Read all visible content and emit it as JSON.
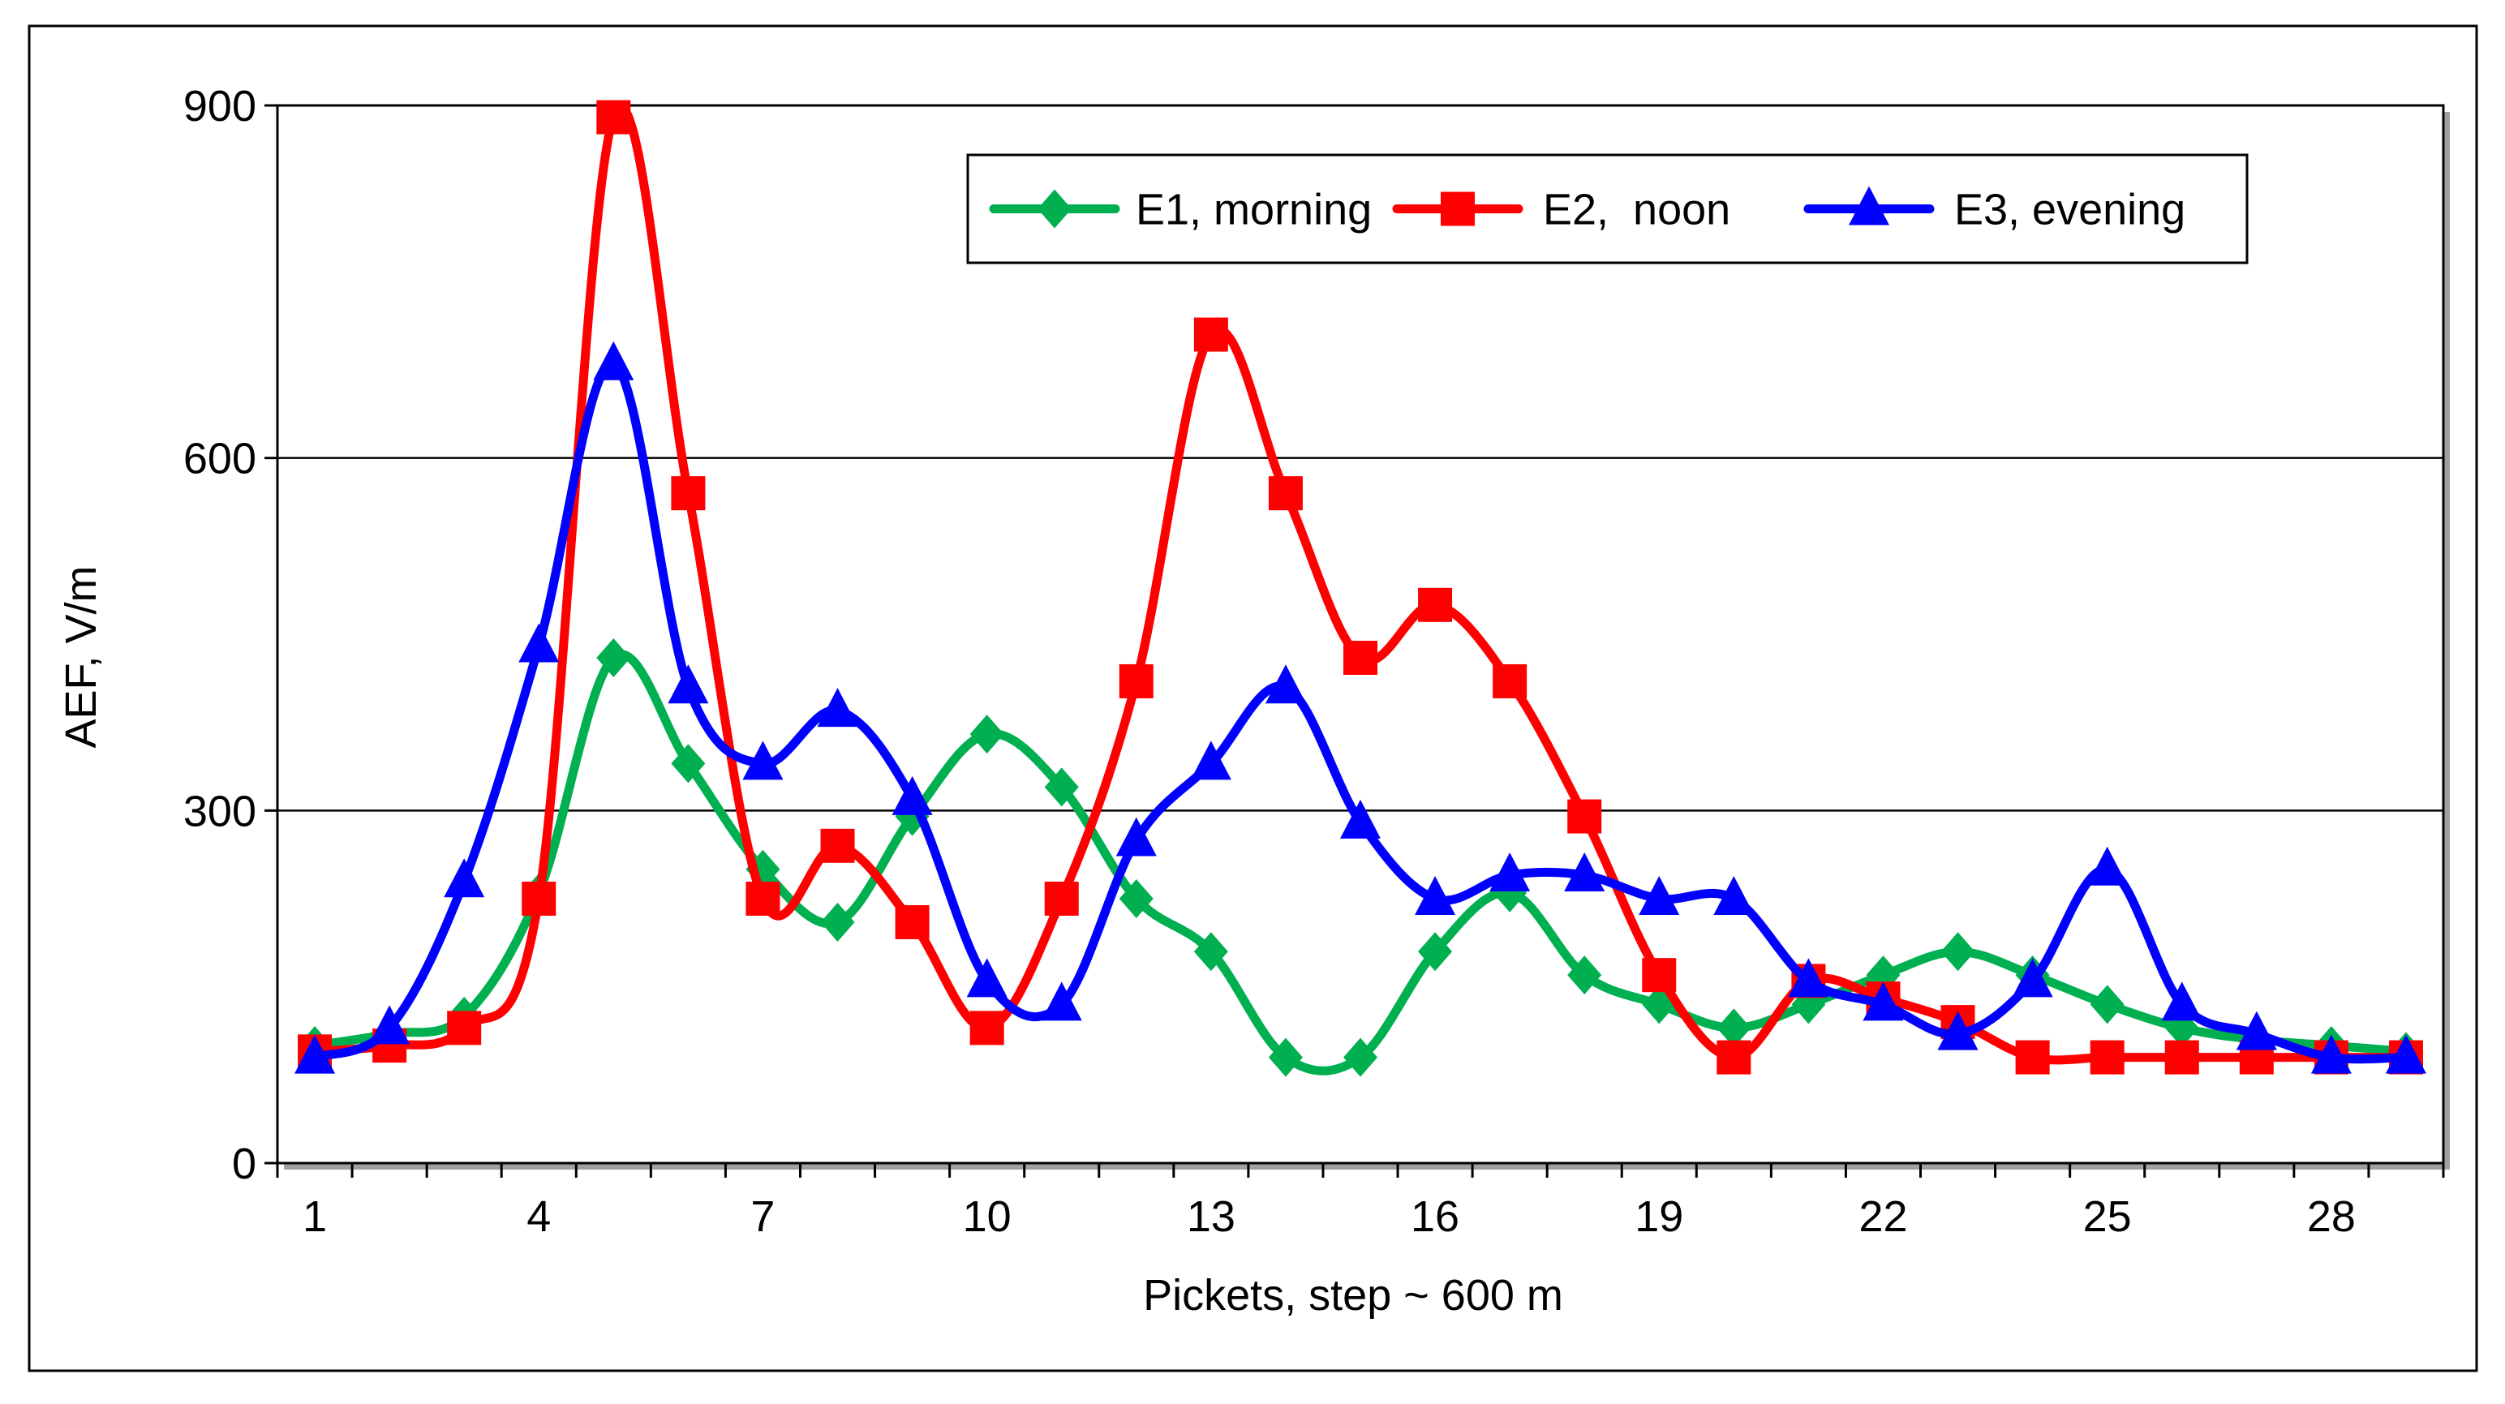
{
  "chart_data": {
    "type": "line",
    "title": "",
    "xlabel": "Pickets, step ~ 600 m",
    "ylabel": "AEF, V/m",
    "xlim": [
      0.5,
      29.5
    ],
    "ylim": [
      0,
      900
    ],
    "yticks": [
      0,
      300,
      600,
      900
    ],
    "ytick_labels": [
      "0",
      "300",
      "600",
      "900"
    ],
    "xtick_values": [
      1,
      4,
      7,
      10,
      13,
      16,
      19,
      22,
      25,
      28
    ],
    "xtick_labels": [
      "1",
      "4",
      "7",
      "10",
      "13",
      "16",
      "19",
      "22",
      "25",
      "28"
    ],
    "grid": true,
    "legend_position": "top-right",
    "x": [
      1,
      2,
      3,
      4,
      5,
      6,
      7,
      8,
      9,
      10,
      11,
      12,
      13,
      14,
      15,
      16,
      17,
      18,
      19,
      20,
      21,
      22,
      23,
      24,
      25,
      26,
      27,
      28,
      29
    ],
    "series": [
      {
        "name": "E1, morning",
        "color": "#00b050",
        "marker": "diamond",
        "values": [
          100,
          110,
          125,
          230,
          430,
          340,
          250,
          205,
          295,
          365,
          320,
          225,
          180,
          90,
          90,
          180,
          230,
          160,
          135,
          115,
          135,
          160,
          180,
          160,
          135,
          115,
          105,
          100,
          95
        ]
      },
      {
        "name": "E2,  noon",
        "color": "#ff0000",
        "marker": "square",
        "values": [
          95,
          100,
          115,
          225,
          890,
          570,
          225,
          270,
          205,
          115,
          225,
          410,
          705,
          570,
          430,
          475,
          410,
          295,
          160,
          90,
          155,
          140,
          120,
          90,
          90,
          90,
          90,
          90,
          90
        ]
      },
      {
        "name": "E3, evening",
        "color": "#0000ff",
        "marker": "triangle",
        "values": [
          90,
          115,
          240,
          440,
          680,
          405,
          340,
          385,
          310,
          155,
          135,
          275,
          340,
          405,
          290,
          225,
          245,
          245,
          225,
          225,
          155,
          135,
          110,
          155,
          250,
          135,
          110,
          90,
          90
        ]
      }
    ]
  }
}
